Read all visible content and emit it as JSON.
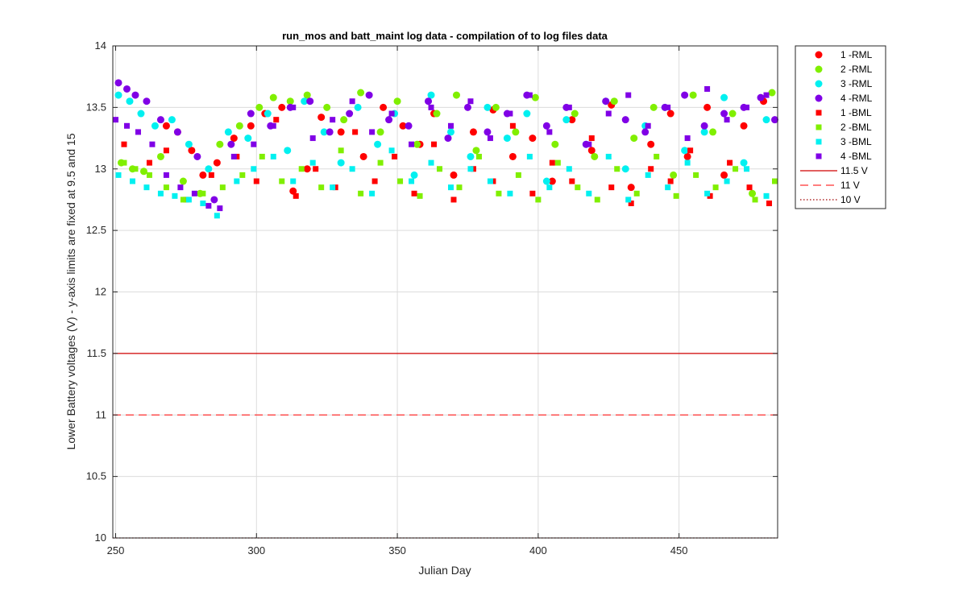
{
  "chart_data": {
    "type": "scatter",
    "title": "run_mos and batt_maint log data - compilation of to log files data",
    "xlabel": "Julian Day",
    "ylabel": "Lower Battery voltages (V) - y-axis limits are fixed at 9.5 and 15",
    "xlim": [
      249,
      485
    ],
    "ylim": [
      10,
      14
    ],
    "x_ticks": [
      250,
      300,
      350,
      400,
      450
    ],
    "y_ticks": [
      10,
      10.5,
      11,
      11.5,
      12,
      12.5,
      13,
      13.5,
      14
    ],
    "grid": true,
    "legend_position": "outside-right",
    "series": [
      {
        "name": "1 -RML",
        "marker": "circle",
        "color": "#ff0000",
        "x": [
          268,
          272,
          277,
          281,
          286,
          292,
          298,
          303,
          309,
          313,
          318,
          323,
          330,
          338,
          345,
          352,
          358,
          363,
          370,
          377,
          384,
          391,
          398,
          405,
          412,
          419,
          426,
          433,
          440,
          447,
          453,
          460,
          466,
          473,
          480
        ],
        "y": [
          13.35,
          13.3,
          13.15,
          12.95,
          13.05,
          13.25,
          13.35,
          13.45,
          13.5,
          12.82,
          13.0,
          13.42,
          13.3,
          13.1,
          13.5,
          13.35,
          13.2,
          13.45,
          12.95,
          13.3,
          13.48,
          13.1,
          13.25,
          12.9,
          13.4,
          13.15,
          13.52,
          12.85,
          13.2,
          13.45,
          13.1,
          13.5,
          12.95,
          13.35,
          13.55
        ]
      },
      {
        "name": "2 -RML",
        "marker": "circle",
        "color": "#80ef00",
        "x": [
          252,
          256,
          260,
          266,
          274,
          280,
          287,
          294,
          301,
          306,
          312,
          318,
          325,
          331,
          337,
          344,
          350,
          357,
          364,
          371,
          378,
          385,
          392,
          399,
          406,
          413,
          420,
          427,
          434,
          441,
          448,
          455,
          462,
          469,
          476,
          483
        ],
        "y": [
          13.05,
          13.0,
          12.98,
          13.1,
          12.9,
          12.8,
          13.2,
          13.35,
          13.5,
          13.58,
          13.55,
          13.6,
          13.5,
          13.4,
          13.62,
          13.3,
          13.55,
          13.2,
          13.45,
          13.6,
          13.15,
          13.5,
          13.3,
          13.58,
          13.2,
          13.45,
          13.1,
          13.55,
          13.25,
          13.5,
          12.95,
          13.6,
          13.3,
          13.45,
          12.8,
          13.62
        ]
      },
      {
        "name": "3 -RML",
        "marker": "circle",
        "color": "#00f0f0",
        "x": [
          251,
          255,
          259,
          264,
          270,
          276,
          283,
          290,
          297,
          304,
          311,
          317,
          324,
          330,
          336,
          343,
          349,
          356,
          362,
          369,
          376,
          382,
          389,
          396,
          403,
          410,
          417,
          424,
          431,
          438,
          445,
          452,
          459,
          466,
          473,
          481
        ],
        "y": [
          13.6,
          13.55,
          13.45,
          13.35,
          13.4,
          13.2,
          13.0,
          13.3,
          13.25,
          13.45,
          13.15,
          13.55,
          13.3,
          13.05,
          13.5,
          13.2,
          13.45,
          12.95,
          13.6,
          13.3,
          13.1,
          13.5,
          13.25,
          13.45,
          12.9,
          13.4,
          13.2,
          13.55,
          13.0,
          13.35,
          13.5,
          13.15,
          13.3,
          13.58,
          13.05,
          13.4
        ]
      },
      {
        "name": "4 -RML",
        "marker": "circle",
        "color": "#8000e6",
        "x": [
          251,
          254,
          257,
          261,
          266,
          272,
          279,
          285,
          291,
          298,
          305,
          312,
          319,
          326,
          333,
          340,
          347,
          354,
          361,
          368,
          375,
          382,
          389,
          396,
          403,
          410,
          417,
          424,
          431,
          438,
          445,
          452,
          459,
          466,
          473,
          479,
          484
        ],
        "y": [
          13.7,
          13.65,
          13.6,
          13.55,
          13.4,
          13.3,
          13.1,
          12.75,
          13.2,
          13.45,
          13.35,
          13.5,
          13.55,
          13.3,
          13.45,
          13.6,
          13.4,
          13.35,
          13.55,
          13.25,
          13.5,
          13.3,
          13.45,
          13.6,
          13.35,
          13.5,
          13.2,
          13.55,
          13.4,
          13.3,
          13.5,
          13.6,
          13.35,
          13.45,
          13.5,
          13.58,
          13.4
        ]
      },
      {
        "name": "1 -BML",
        "marker": "square",
        "color": "#ff0000",
        "x": [
          253,
          262,
          268,
          275,
          284,
          293,
          300,
          307,
          314,
          321,
          328,
          335,
          342,
          349,
          356,
          363,
          370,
          377,
          384,
          391,
          398,
          405,
          412,
          419,
          426,
          433,
          440,
          447,
          454,
          461,
          468,
          475,
          482
        ],
        "y": [
          13.2,
          13.05,
          13.15,
          12.75,
          12.95,
          13.1,
          12.9,
          13.4,
          12.78,
          13.0,
          12.85,
          13.3,
          12.9,
          13.1,
          12.8,
          13.2,
          12.75,
          13.0,
          12.9,
          13.35,
          12.8,
          13.05,
          12.9,
          13.25,
          12.85,
          12.72,
          13.0,
          12.9,
          13.15,
          12.78,
          13.05,
          12.85,
          12.72
        ]
      },
      {
        "name": "2 -BML",
        "marker": "square",
        "color": "#80ef00",
        "x": [
          253,
          257,
          262,
          268,
          274,
          281,
          288,
          295,
          302,
          309,
          316,
          323,
          330,
          337,
          344,
          351,
          358,
          365,
          372,
          379,
          386,
          393,
          400,
          407,
          414,
          421,
          428,
          435,
          442,
          449,
          456,
          463,
          470,
          477,
          484
        ],
        "y": [
          13.05,
          13.0,
          12.95,
          12.85,
          12.75,
          12.8,
          12.85,
          12.95,
          13.1,
          12.9,
          13.0,
          12.85,
          13.15,
          12.8,
          13.05,
          12.9,
          12.78,
          13.0,
          12.85,
          13.1,
          12.8,
          12.95,
          12.75,
          13.05,
          12.85,
          12.75,
          13.0,
          12.8,
          13.1,
          12.78,
          12.95,
          12.85,
          13.0,
          12.75,
          12.9
        ]
      },
      {
        "name": "3 -BML",
        "marker": "square",
        "color": "#00f0f0",
        "x": [
          251,
          256,
          261,
          266,
          271,
          276,
          281,
          286,
          293,
          299,
          306,
          313,
          320,
          327,
          334,
          341,
          348,
          355,
          362,
          369,
          376,
          383,
          390,
          397,
          404,
          411,
          418,
          425,
          432,
          439,
          446,
          453,
          460,
          467,
          474,
          481
        ],
        "y": [
          12.95,
          12.9,
          12.85,
          12.8,
          12.78,
          12.75,
          12.72,
          12.62,
          12.9,
          13.0,
          13.1,
          12.9,
          13.05,
          12.85,
          13.0,
          12.8,
          13.15,
          12.9,
          13.05,
          12.85,
          13.0,
          12.9,
          12.8,
          13.1,
          12.85,
          13.0,
          12.8,
          13.1,
          12.75,
          12.95,
          12.85,
          13.05,
          12.8,
          12.9,
          13.0,
          12.78
        ]
      },
      {
        "name": "4 -BML",
        "marker": "square",
        "color": "#8000e6",
        "x": [
          250,
          254,
          258,
          263,
          268,
          273,
          278,
          283,
          287,
          292,
          299,
          306,
          313,
          320,
          327,
          334,
          341,
          348,
          355,
          362,
          369,
          376,
          383,
          390,
          397,
          404,
          411,
          418,
          425,
          432,
          439,
          446,
          453,
          460,
          467,
          474,
          481
        ],
        "y": [
          13.4,
          13.35,
          13.3,
          13.2,
          12.95,
          12.85,
          12.8,
          12.7,
          12.68,
          13.1,
          13.2,
          13.35,
          13.5,
          13.25,
          13.4,
          13.55,
          13.3,
          13.45,
          13.2,
          13.5,
          13.35,
          13.55,
          13.25,
          13.45,
          13.6,
          13.3,
          13.5,
          13.2,
          13.45,
          13.6,
          13.35,
          13.5,
          13.25,
          13.65,
          13.4,
          13.5,
          13.6
        ]
      }
    ],
    "reference_lines": [
      {
        "name": "11.5 V",
        "y": 11.5,
        "style": "solid",
        "color": "#d00000"
      },
      {
        "name": "11 V",
        "y": 11,
        "style": "dashed",
        "color": "#ff3030"
      },
      {
        "name": "10 V",
        "y": 10,
        "style": "dotted",
        "color": "#a00000"
      }
    ]
  }
}
